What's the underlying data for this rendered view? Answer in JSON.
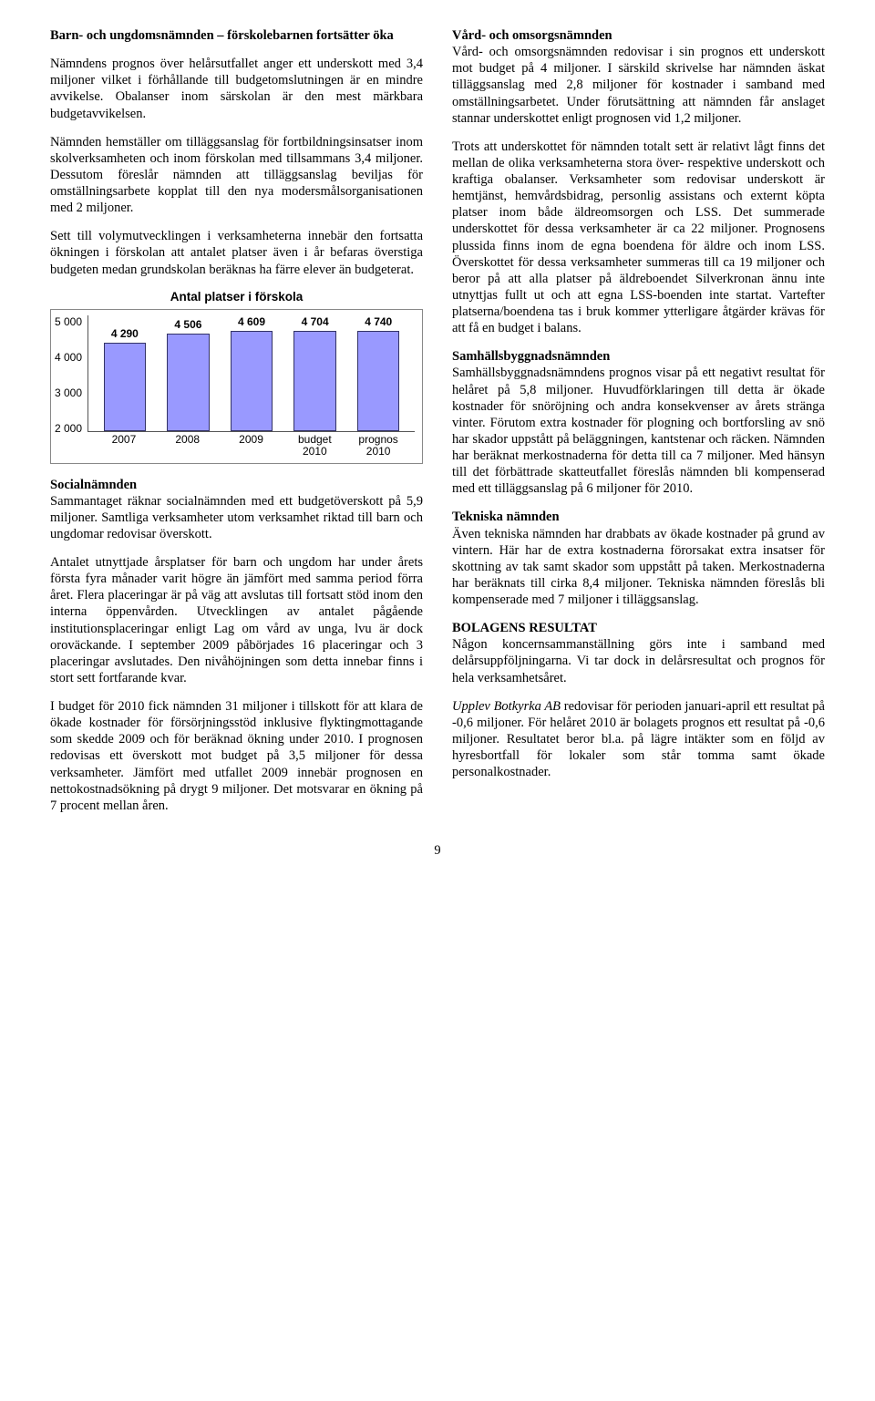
{
  "left": {
    "h1": "Barn- och ungdomsnämnden – förskolebarnen fortsätter öka",
    "p1": "Nämndens prognos över helårsutfallet anger ett underskott med 3,4 miljoner vilket i förhållande till budgetomslutningen är en mindre avvikelse. Obalanser inom särskolan är den mest märkbara budgetavvikelsen.",
    "p2": "Nämnden hemställer om tilläggsanslag för fortbildningsinsatser inom skolverksamheten och inom förskolan med tillsammans 3,4 miljoner. Dessutom föreslår nämnden att tilläggsanslag beviljas för omställningsarbete kopplat till den nya modersmålsorganisationen med 2 miljoner.",
    "p3": "Sett till volymutvecklingen i verksamheterna innebär den fortsatta ökningen i förskolan att antalet platser även i år befaras överstiga budgeten medan grundskolan beräknas ha färre elever än budgeterat.",
    "h2": "Socialnämnden",
    "p4": "Sammantaget räknar socialnämnden med ett budgetöverskott på 5,9 miljoner. Samtliga verksamheter utom verksamhet riktad till barn och ungdomar redovisar överskott.",
    "p5": "Antalet utnyttjade årsplatser för barn och ungdom har under årets första fyra månader varit högre än jämfört med samma period förra året. Flera placeringar är på väg att avslutas till fortsatt stöd inom den interna öppenvården. Utvecklingen av antalet pågående institutionsplaceringar enligt Lag om vård av unga, lvu är dock oroväckande. I september 2009 påbörjades 16 placeringar och 3 placeringar avslutades. Den nivåhöjningen som detta innebar finns i stort sett fortfarande kvar.",
    "p6": "I budget för 2010 fick nämnden 31 miljoner i tillskott för att klara de ökade kostnader för försörjningsstöd inklusive flyktingmottagande som skedde 2009 och för beräknad ökning under 2010. I prognosen redovisas ett överskott mot budget på 3,5 miljoner för dessa verksamheter. Jämfört med utfallet 2009 innebär prognosen en nettokostnadsökning på drygt 9 miljoner. Det motsvarar en ökning på 7 procent mellan åren."
  },
  "right": {
    "h1": "Vård- och omsorgsnämnden",
    "p1": "Vård- och omsorgsnämnden redovisar i sin prognos ett underskott mot budget på 4 miljoner. I särskild skrivelse har nämnden äskat tilläggsanslag med 2,8 miljoner för kostnader i samband med omställningsarbetet. Under förutsättning att nämnden får anslaget stannar underskottet enligt prognosen vid 1,2 miljoner.",
    "p2": "Trots att underskottet för nämnden totalt sett är relativt lågt finns det mellan de olika verksamheterna stora över- respektive underskott och kraftiga obalanser. Verksamheter som redovisar underskott är hemtjänst, hemvårdsbidrag, personlig assistans och externt köpta platser inom både äldreomsorgen och LSS. Det summerade underskottet för dessa verksamheter är ca 22 miljoner. Prognosens plussida finns inom de egna boendena för äldre och inom LSS. Överskottet för dessa verksamheter summeras till ca 19 miljoner och beror på att alla platser på äldreboendet Silverkronan ännu inte utnyttjas fullt ut och att egna LSS-boenden inte startat. Vartefter platserna/boendena tas i bruk kommer ytterligare åtgärder krävas för att få en budget i balans.",
    "h2": "Samhällsbyggnadsnämnden",
    "p3": "Samhällsbyggnadsnämndens prognos visar på ett negativt resultat för helåret på 5,8 miljoner. Huvudförklaringen till detta är ökade kostnader för snöröjning och andra konsekvenser av årets stränga vinter. Förutom extra kostnader för plogning och bortforsling av snö har skador uppstått på beläggningen, kantstenar och räcken. Nämnden har beräknat merkostnaderna för detta till ca 7 miljoner. Med hänsyn till det förbättrade skatteutfallet föreslås nämnden bli kompenserad med ett tilläggsanslag på 6 miljoner för 2010.",
    "h3": "Tekniska nämnden",
    "p4": "Även tekniska nämnden har drabbats av ökade kostnader på grund av vintern. Här har de extra kostnaderna förorsakat extra insatser för skottning av tak samt skador som uppstått på taken. Merkostnaderna har beräknats till cirka 8,4 miljoner. Tekniska nämnden föreslås bli kompenserade med 7 miljoner i tilläggsanslag.",
    "h4": "BOLAGENS RESULTAT",
    "p5": "Någon koncernsammanställning görs inte i samband med delårsuppföljningarna. Vi tar dock in delårsresultat och prognos för hela verksamhetsåret.",
    "p6a": "Upplev Botkyrka AB",
    "p6b": " redovisar för perioden januari-april ett resultat på -0,6 miljoner. För helåret 2010 är bolagets prognos ett resultat på -0,6 miljoner. Resultatet beror bl.a. på lägre intäkter som en följd av hyresbortfall för lokaler som står tomma samt ökade personalkostnader."
  },
  "chart": {
    "title": "Antal platser i förskola",
    "type": "bar",
    "categories": [
      "2007",
      "2008",
      "2009",
      "budget 2010",
      "prognos 2010"
    ],
    "values": [
      4290,
      4506,
      4609,
      4704,
      4740
    ],
    "value_labels": [
      "4 290",
      "4 506",
      "4 609",
      "4 704",
      "4 740"
    ],
    "ymin": 2000,
    "ymax": 5000,
    "ytick_step": 1000,
    "y_labels": [
      "5 000",
      "4 000",
      "3 000",
      "2 000"
    ],
    "bar_color": "#9999ff",
    "bar_border": "#333366",
    "background_color": "#ffffff",
    "border_color": "#888888",
    "label_fontsize": 12,
    "title_fontsize": 13.5,
    "bar_width": 0.78
  },
  "page_number": "9"
}
